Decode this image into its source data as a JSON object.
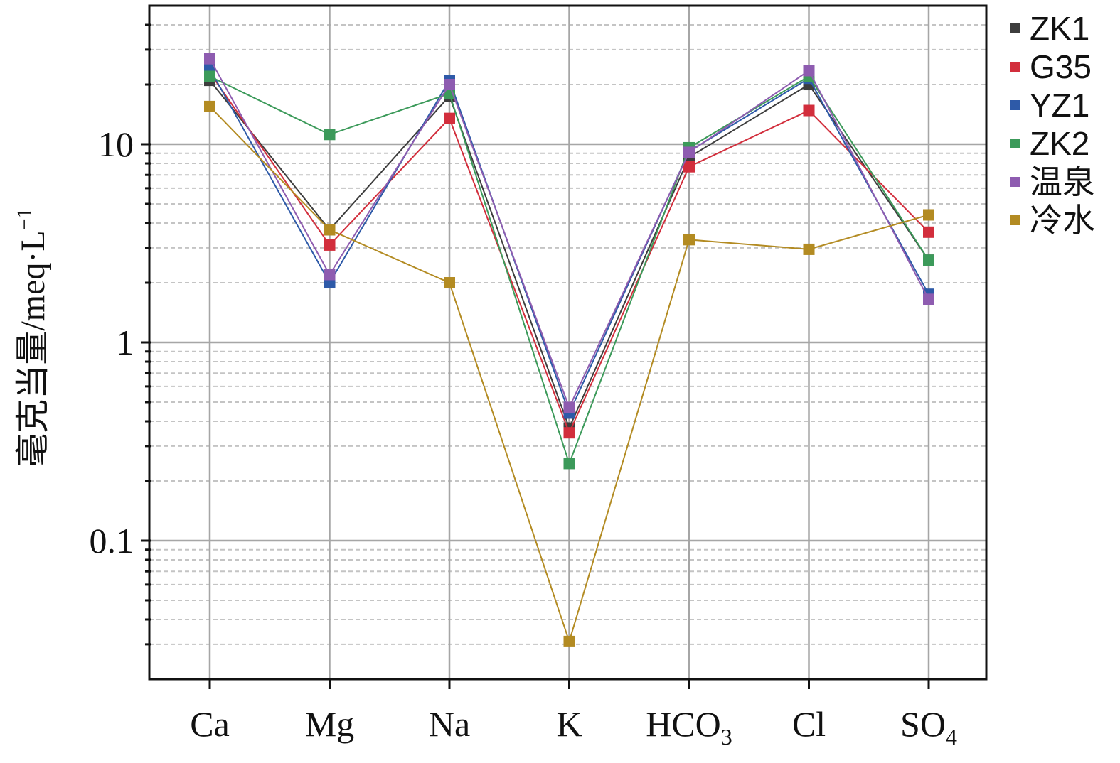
{
  "chart_data": {
    "type": "line",
    "ylabel": "毫克当量/meq·L",
    "ylabel_superscript": "−1",
    "yscale": "log",
    "ylim": [
      0.02,
      50
    ],
    "y_ticks": [
      {
        "value": 0.1,
        "label": "0.1"
      },
      {
        "value": 1,
        "label": "1"
      },
      {
        "value": 10,
        "label": "10"
      }
    ],
    "grid": true,
    "legend_position": "right",
    "categories": [
      {
        "main": "Ca",
        "sub": ""
      },
      {
        "main": "Mg",
        "sub": ""
      },
      {
        "main": "Na",
        "sub": ""
      },
      {
        "main": "K",
        "sub": ""
      },
      {
        "main": "HCO",
        "sub": "3"
      },
      {
        "main": "Cl",
        "sub": ""
      },
      {
        "main": "SO",
        "sub": "4"
      }
    ],
    "series": [
      {
        "name": "ZK1",
        "color": "#3d3d3d",
        "values": [
          21,
          3.7,
          17.5,
          0.37,
          8.6,
          20,
          2.6
        ]
      },
      {
        "name": "G35",
        "color": "#d22e3c",
        "values": [
          23,
          3.1,
          13.5,
          0.35,
          7.7,
          14.8,
          3.6
        ]
      },
      {
        "name": "YZ1",
        "color": "#2e5aa8",
        "values": [
          24,
          2.0,
          21,
          0.44,
          9.2,
          21.5,
          1.75
        ]
      },
      {
        "name": "ZK2",
        "color": "#3c9a5a",
        "values": [
          22,
          11.2,
          18,
          0.245,
          9.6,
          22,
          2.6
        ]
      },
      {
        "name": "温泉",
        "color": "#8e5cb0",
        "values": [
          27,
          2.2,
          20,
          0.47,
          9.1,
          23.5,
          1.65
        ]
      },
      {
        "name": "冷水",
        "color": "#b38b22",
        "values": [
          15.5,
          3.7,
          2.0,
          0.031,
          3.3,
          2.95,
          4.4
        ]
      }
    ]
  }
}
